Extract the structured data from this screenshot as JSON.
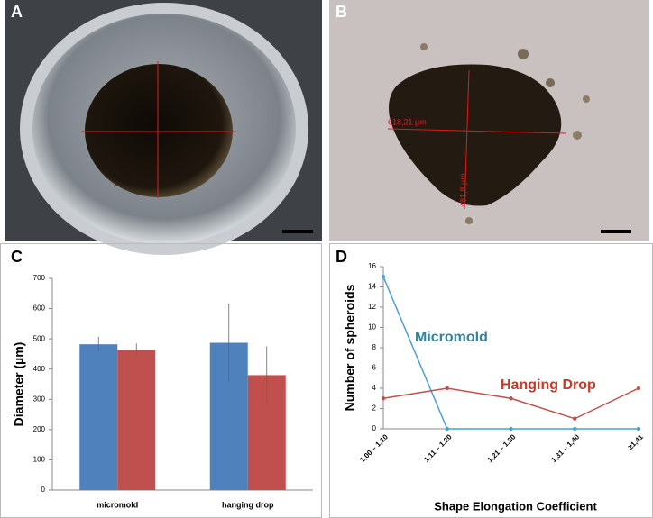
{
  "panels": [
    "A",
    "B",
    "C",
    "D"
  ],
  "image_b": {
    "labels": [
      "618,21 µm",
      "481,8 µm"
    ]
  },
  "chart_data": [
    {
      "type": "bar",
      "ylabel": "Diameter (µm)",
      "categories": [
        "micromold",
        "hanging drop"
      ],
      "series": [
        {
          "color": "#4f81bd",
          "values": [
            482,
            487
          ],
          "errors": [
            25,
            130
          ]
        },
        {
          "color": "#c0504d",
          "values": [
            463,
            380
          ],
          "errors": [
            22,
            95
          ]
        }
      ],
      "ylim": [
        0,
        700
      ],
      "yticks": [
        0,
        100,
        200,
        300,
        400,
        500,
        600,
        700
      ],
      "grid": false
    },
    {
      "type": "line",
      "xlabel": "Shape Elongation Coefficient",
      "ylabel": "Number of spheroids",
      "categories": [
        "1,00 – 1,10",
        "1,11 – 1,20",
        "1,21 – 1,30",
        "1,31 – 1,40",
        "≥1,41"
      ],
      "series": [
        {
          "name": "Micromold",
          "color": "#4a9fd5",
          "label_color": "#31849b",
          "values": [
            15,
            0,
            0,
            0,
            0
          ]
        },
        {
          "name": "Hanging Drop",
          "color": "#c0504d",
          "label_color": "#c0392b",
          "values": [
            3,
            4,
            3,
            1,
            4
          ]
        }
      ],
      "ylim": [
        0,
        16
      ],
      "yticks": [
        0,
        2,
        4,
        6,
        8,
        10,
        12,
        14,
        16
      ],
      "grid": false
    }
  ]
}
